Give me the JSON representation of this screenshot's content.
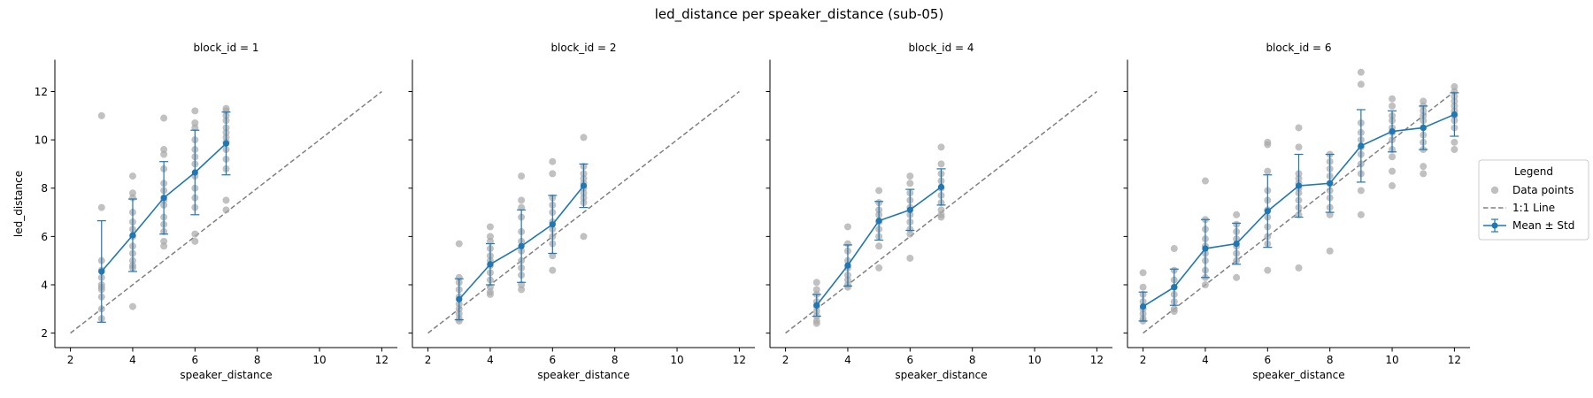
{
  "figure": {
    "suptitle": "led_distance per speaker_distance (sub-05)"
  },
  "legend": {
    "title": "Legend",
    "items": [
      {
        "label": "Data points",
        "kind": "scatter",
        "color": "#a9a9a9"
      },
      {
        "label": "1:1 Line",
        "kind": "dashed",
        "color": "#808080"
      },
      {
        "label": "Mean ± Std",
        "kind": "errorbar",
        "color": "#1f77b4"
      }
    ],
    "position": "center-right"
  },
  "colors": {
    "mean": "#1f77b4",
    "points": "#a9a9a9",
    "identity": "#808080",
    "axis": "#000000"
  },
  "chart_data": [
    {
      "type": "scatter",
      "title": "block_id = 1",
      "xlabel": "speaker_distance",
      "ylabel": "led_distance",
      "xlim": [
        1.5,
        12.5
      ],
      "ylim": [
        1.4,
        13.3
      ],
      "xticks": [
        2,
        4,
        6,
        8,
        10,
        12
      ],
      "yticks": [
        2,
        4,
        6,
        8,
        10,
        12
      ],
      "grid": false,
      "identity_line": {
        "from": 2,
        "to": 12
      },
      "mean": [
        {
          "x": 3,
          "y": 4.55,
          "std": 2.1
        },
        {
          "x": 4,
          "y": 6.05,
          "std": 1.5
        },
        {
          "x": 5,
          "y": 7.6,
          "std": 1.5
        },
        {
          "x": 6,
          "y": 8.65,
          "std": 1.75
        },
        {
          "x": 7,
          "y": 9.85,
          "std": 1.3
        }
      ],
      "points": [
        {
          "x": 3,
          "ys": [
            11.0,
            7.2,
            5.0,
            4.6,
            4.3,
            4.0,
            3.9,
            3.8,
            3.5,
            3.0,
            2.6
          ]
        },
        {
          "x": 4,
          "ys": [
            8.5,
            7.8,
            7.6,
            7.0,
            6.6,
            6.3,
            6.0,
            5.6,
            5.3,
            5.0,
            4.8,
            4.7,
            3.1
          ]
        },
        {
          "x": 5,
          "ys": [
            10.9,
            9.6,
            9.4,
            8.8,
            8.2,
            7.9,
            7.5,
            7.3,
            6.8,
            6.5,
            6.2,
            5.8,
            5.6
          ]
        },
        {
          "x": 6,
          "ys": [
            11.2,
            10.7,
            10.5,
            10.0,
            9.6,
            9.3,
            9.0,
            8.5,
            8.0,
            7.6,
            7.2,
            6.1,
            5.8
          ]
        },
        {
          "x": 7,
          "ys": [
            11.3,
            11.2,
            11.0,
            10.8,
            10.5,
            10.3,
            10.1,
            9.9,
            9.6,
            9.2,
            8.8,
            7.5,
            7.1
          ]
        }
      ]
    },
    {
      "type": "scatter",
      "title": "block_id = 2",
      "xlabel": "speaker_distance",
      "ylabel": "",
      "xlim": [
        1.5,
        12.5
      ],
      "ylim": [
        1.4,
        13.3
      ],
      "xticks": [
        2,
        4,
        6,
        8,
        10,
        12
      ],
      "yticks": [
        2,
        4,
        6,
        8,
        10,
        12
      ],
      "grid": false,
      "identity_line": {
        "from": 2,
        "to": 12
      },
      "mean": [
        {
          "x": 3,
          "y": 3.4,
          "std": 0.85
        },
        {
          "x": 4,
          "y": 4.85,
          "std": 0.85
        },
        {
          "x": 5,
          "y": 5.6,
          "std": 1.5
        },
        {
          "x": 6,
          "y": 6.5,
          "std": 1.2
        },
        {
          "x": 7,
          "y": 8.1,
          "std": 0.9
        }
      ],
      "points": [
        {
          "x": 3,
          "ys": [
            5.7,
            4.3,
            4.1,
            3.8,
            3.5,
            3.2,
            3.0,
            2.8,
            2.6,
            2.5
          ]
        },
        {
          "x": 4,
          "ys": [
            6.4,
            6.0,
            5.8,
            5.5,
            5.2,
            5.0,
            4.8,
            4.5,
            4.2,
            3.9,
            3.7,
            3.6
          ]
        },
        {
          "x": 5,
          "ys": [
            8.5,
            7.5,
            7.2,
            6.8,
            6.2,
            5.8,
            5.4,
            5.0,
            4.7,
            4.4,
            4.0,
            3.8
          ]
        },
        {
          "x": 6,
          "ys": [
            9.1,
            8.6,
            7.6,
            7.3,
            7.0,
            6.6,
            6.3,
            6.0,
            5.7,
            5.2,
            4.6
          ]
        },
        {
          "x": 7,
          "ys": [
            10.1,
            8.9,
            8.6,
            8.4,
            8.2,
            8.0,
            7.8,
            7.6,
            7.4,
            6.0
          ]
        }
      ]
    },
    {
      "type": "scatter",
      "title": "block_id = 4",
      "xlabel": "speaker_distance",
      "ylabel": "",
      "xlim": [
        1.5,
        12.5
      ],
      "ylim": [
        1.4,
        13.3
      ],
      "xticks": [
        2,
        4,
        6,
        8,
        10,
        12
      ],
      "yticks": [
        2,
        4,
        6,
        8,
        10,
        12
      ],
      "grid": false,
      "identity_line": {
        "from": 2,
        "to": 12
      },
      "mean": [
        {
          "x": 3,
          "y": 3.15,
          "std": 0.45
        },
        {
          "x": 4,
          "y": 4.8,
          "std": 0.85
        },
        {
          "x": 5,
          "y": 6.65,
          "std": 0.8
        },
        {
          "x": 6,
          "y": 7.1,
          "std": 0.85
        },
        {
          "x": 7,
          "y": 8.05,
          "std": 0.75
        }
      ],
      "points": [
        {
          "x": 3,
          "ys": [
            4.1,
            3.8,
            3.6,
            3.3,
            3.1,
            2.9,
            2.7,
            2.5,
            2.4
          ]
        },
        {
          "x": 4,
          "ys": [
            6.4,
            5.7,
            5.4,
            5.0,
            4.7,
            4.4,
            4.2,
            4.0,
            3.9
          ]
        },
        {
          "x": 5,
          "ys": [
            7.9,
            7.4,
            7.1,
            6.9,
            6.6,
            6.3,
            6.0,
            5.6,
            4.7
          ]
        },
        {
          "x": 6,
          "ys": [
            8.5,
            8.2,
            7.8,
            7.5,
            7.2,
            6.9,
            6.6,
            6.3,
            6.1,
            5.1
          ]
        },
        {
          "x": 7,
          "ys": [
            9.7,
            9.0,
            8.6,
            8.3,
            8.0,
            7.7,
            7.4,
            7.1,
            6.9,
            6.8
          ]
        }
      ]
    },
    {
      "type": "scatter",
      "title": "block_id = 6",
      "xlabel": "speaker_distance",
      "ylabel": "",
      "xlim": [
        1.5,
        12.5
      ],
      "ylim": [
        1.4,
        13.3
      ],
      "xticks": [
        2,
        4,
        6,
        8,
        10,
        12
      ],
      "yticks": [
        2,
        4,
        6,
        8,
        10,
        12
      ],
      "grid": false,
      "identity_line": {
        "from": 2,
        "to": 12
      },
      "mean": [
        {
          "x": 2,
          "y": 3.1,
          "std": 0.6
        },
        {
          "x": 3,
          "y": 3.9,
          "std": 0.75
        },
        {
          "x": 4,
          "y": 5.5,
          "std": 1.2
        },
        {
          "x": 5,
          "y": 5.7,
          "std": 0.85
        },
        {
          "x": 6,
          "y": 7.05,
          "std": 1.5
        },
        {
          "x": 7,
          "y": 8.1,
          "std": 1.3
        },
        {
          "x": 8,
          "y": 8.2,
          "std": 1.2
        },
        {
          "x": 9,
          "y": 9.75,
          "std": 1.5
        },
        {
          "x": 10,
          "y": 10.35,
          "std": 0.85
        },
        {
          "x": 11,
          "y": 10.5,
          "std": 0.9
        },
        {
          "x": 12,
          "y": 11.05,
          "std": 0.9
        }
      ],
      "points": [
        {
          "x": 2,
          "ys": [
            4.5,
            3.9,
            3.6,
            3.3,
            3.0,
            2.8,
            2.6,
            2.5
          ]
        },
        {
          "x": 3,
          "ys": [
            5.5,
            4.6,
            4.2,
            3.9,
            3.6,
            3.3,
            3.0,
            2.9
          ]
        },
        {
          "x": 4,
          "ys": [
            8.3,
            6.7,
            6.3,
            5.9,
            5.6,
            5.3,
            5.0,
            4.6,
            4.3,
            4.0
          ]
        },
        {
          "x": 5,
          "ys": [
            6.9,
            6.5,
            6.2,
            5.9,
            5.6,
            5.3,
            5.0,
            4.3
          ]
        },
        {
          "x": 6,
          "ys": [
            9.9,
            9.8,
            8.7,
            7.9,
            7.5,
            7.1,
            6.8,
            6.4,
            6.0,
            5.7,
            4.6
          ]
        },
        {
          "x": 7,
          "ys": [
            10.5,
            9.7,
            8.6,
            8.4,
            8.2,
            8.0,
            7.8,
            7.5,
            7.2,
            6.9,
            4.7
          ]
        },
        {
          "x": 8,
          "ys": [
            9.4,
            9.1,
            8.8,
            8.5,
            8.2,
            7.9,
            7.6,
            7.2,
            6.9,
            5.4
          ]
        },
        {
          "x": 9,
          "ys": [
            12.8,
            12.3,
            10.7,
            10.3,
            10.0,
            9.7,
            9.4,
            9.0,
            8.6,
            7.9,
            6.9
          ]
        },
        {
          "x": 10,
          "ys": [
            11.7,
            11.4,
            11.0,
            10.8,
            10.5,
            10.3,
            10.0,
            9.6,
            9.3,
            8.7,
            8.1
          ]
        },
        {
          "x": 11,
          "ys": [
            11.6,
            11.4,
            11.2,
            11.0,
            10.8,
            10.5,
            10.2,
            9.9,
            9.6,
            8.9,
            8.6
          ]
        },
        {
          "x": 12,
          "ys": [
            12.2,
            12.0,
            11.8,
            11.6,
            11.4,
            11.2,
            11.0,
            10.8,
            10.5,
            9.9,
            9.6
          ]
        }
      ]
    }
  ]
}
